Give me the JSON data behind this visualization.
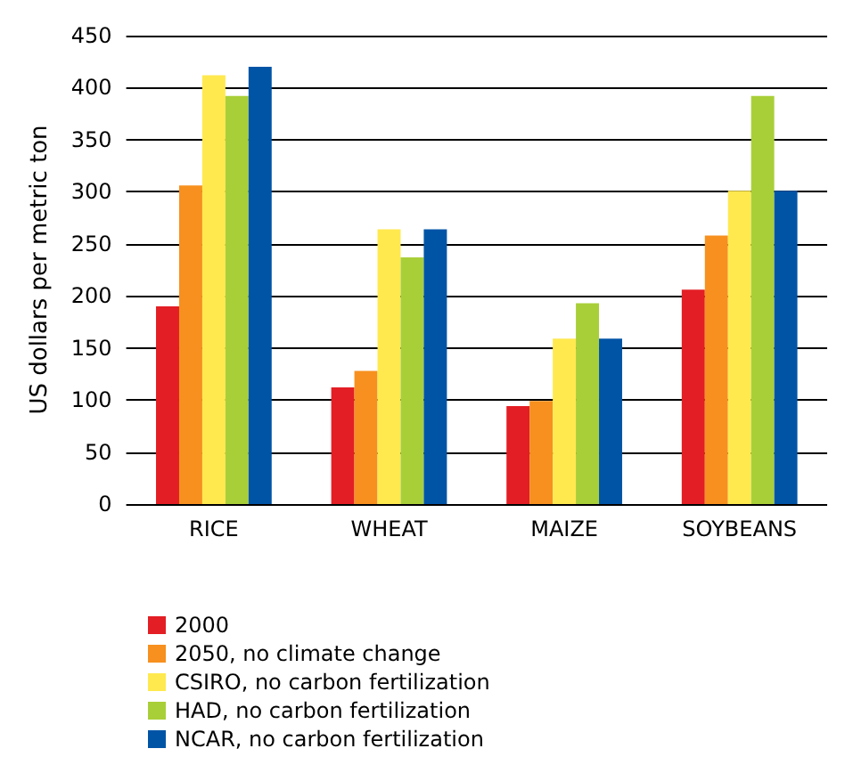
{
  "chart_data": {
    "type": "bar",
    "ylabel": "US dollars per metric ton",
    "categories": [
      "RICE",
      "WHEAT",
      "MAIZE",
      "SOYBEANS"
    ],
    "series": [
      {
        "name": "2000",
        "color": "#e31e24",
        "values": [
          190,
          112,
          94,
          206
        ]
      },
      {
        "name": "2050, no climate change",
        "color": "#f7901e",
        "values": [
          306,
          128,
          99,
          258
        ]
      },
      {
        "name": "CSIRO, no carbon fertilization",
        "color": "#ffe94f",
        "values": [
          412,
          264,
          159,
          301
        ]
      },
      {
        "name": "HAD, no carbon fertilization",
        "color": "#a9cf38",
        "values": [
          392,
          237,
          193,
          392
        ]
      },
      {
        "name": "NCAR, no carbon fertilization",
        "color": "#0054a6",
        "values": [
          420,
          264,
          159,
          301
        ]
      }
    ],
    "ylim": [
      0,
      450
    ],
    "yticks": [
      0,
      50,
      100,
      150,
      200,
      250,
      300,
      350,
      400,
      450
    ],
    "grid": "y",
    "legend": "bottom left"
  }
}
